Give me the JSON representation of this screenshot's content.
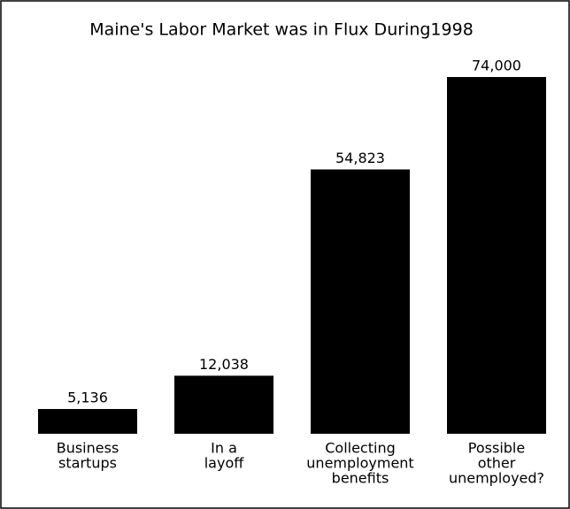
{
  "chart_data": {
    "type": "bar",
    "title": "Maine's Labor Market was in Flux During1998",
    "categories": [
      [
        "Business",
        "startups"
      ],
      [
        "In a",
        "layoff"
      ],
      [
        "Collecting",
        "unemployment",
        "benefits"
      ],
      [
        "Possible",
        "other",
        "unemployed?"
      ]
    ],
    "values": [
      5136,
      12038,
      54823,
      74000
    ],
    "value_labels": [
      "5,136",
      "12,038",
      "54,823",
      "74,000"
    ],
    "color": "#000000"
  }
}
